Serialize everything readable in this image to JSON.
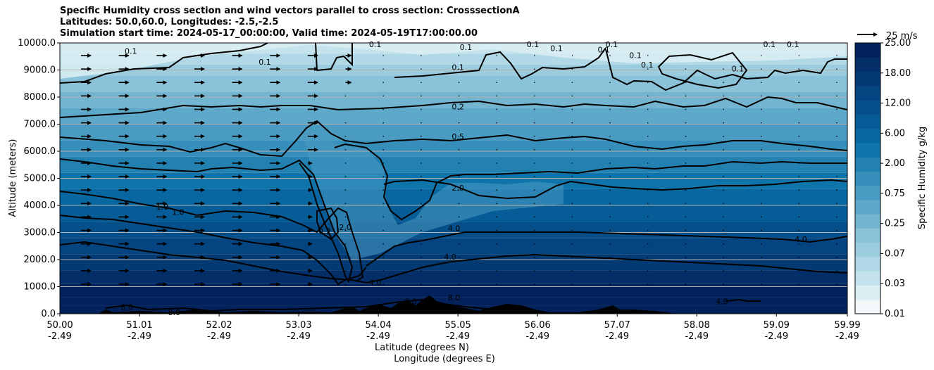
{
  "chart_data": {
    "type": "heatmap",
    "title_lines": [
      "Specific Humidity cross section and wind vectors parallel to cross section: CrosssectionA",
      "Latitudes: 50.0,60.0, Longitudes: -2.5,-2.5",
      "Simulation start time: 2024-05-17_00:00:00, Valid time: 2024-05-19T17:00:00.00"
    ],
    "xlabel_lines": [
      "Latitude (degrees N)",
      "Longitude (degrees E)"
    ],
    "ylabel": "Altitude (meters)",
    "x_ticks": [
      {
        "lat": "50.00",
        "lon": "-2.49"
      },
      {
        "lat": "51.01",
        "lon": "-2.49"
      },
      {
        "lat": "52.02",
        "lon": "-2.49"
      },
      {
        "lat": "53.03",
        "lon": "-2.49"
      },
      {
        "lat": "54.04",
        "lon": "-2.49"
      },
      {
        "lat": "55.05",
        "lon": "-2.49"
      },
      {
        "lat": "56.06",
        "lon": "-2.49"
      },
      {
        "lat": "57.07",
        "lon": "-2.49"
      },
      {
        "lat": "58.08",
        "lon": "-2.49"
      },
      {
        "lat": "59.09",
        "lon": "-2.49"
      },
      {
        "lat": "59.99",
        "lon": "-2.49"
      }
    ],
    "y_ticks": [
      "0.0",
      "1000.0",
      "2000.0",
      "3000.0",
      "4000.0",
      "5000.0",
      "6000.0",
      "7000.0",
      "8000.0",
      "9000.0",
      "10000.0"
    ],
    "ylim": [
      0,
      10000
    ],
    "xlim": [
      50.0,
      59.99
    ],
    "colorbar": {
      "label": "Specific Humidity g/kg",
      "ticks": [
        "0.01",
        "0.03",
        "0.07",
        "0.25",
        "0.75",
        "2.00",
        "6.00",
        "12.00",
        "18.00",
        "25.00"
      ],
      "levels": 19
    },
    "quiver_key": "25 m/s",
    "contour_labels": [
      {
        "text": "0.1",
        "lat": 50.9,
        "alt": 9700
      },
      {
        "text": "0.1",
        "lat": 52.6,
        "alt": 9300
      },
      {
        "text": "0.1",
        "lat": 54.0,
        "alt": 9950
      },
      {
        "text": "0.1",
        "lat": 55.15,
        "alt": 9850
      },
      {
        "text": "0.1",
        "lat": 55.05,
        "alt": 9100
      },
      {
        "text": "0.1",
        "lat": 56.0,
        "alt": 9950
      },
      {
        "text": "0.1",
        "lat": 56.3,
        "alt": 9800
      },
      {
        "text": "0.1",
        "lat": 56.9,
        "alt": 9750
      },
      {
        "text": "0.1",
        "lat": 57.0,
        "alt": 9950
      },
      {
        "text": "0.1",
        "lat": 57.3,
        "alt": 9550
      },
      {
        "text": "0.1",
        "lat": 57.45,
        "alt": 9200
      },
      {
        "text": "0.1",
        "lat": 59.0,
        "alt": 9950
      },
      {
        "text": "0.1",
        "lat": 59.3,
        "alt": 9950
      },
      {
        "text": "0.1",
        "lat": 58.6,
        "alt": 9050
      },
      {
        "text": "0.2",
        "lat": 55.05,
        "alt": 7650
      },
      {
        "text": "0.5",
        "lat": 55.05,
        "alt": 6550
      },
      {
        "text": "2.0",
        "lat": 55.05,
        "alt": 4650
      },
      {
        "text": "4.0",
        "lat": 55.0,
        "alt": 3150
      },
      {
        "text": "4.0",
        "lat": 54.95,
        "alt": 2100
      },
      {
        "text": "4.0",
        "lat": 54.0,
        "alt": 1150
      },
      {
        "text": "4.0",
        "lat": 59.4,
        "alt": 2750
      },
      {
        "text": "4.0",
        "lat": 58.4,
        "alt": 450
      },
      {
        "text": "1.0",
        "lat": 51.3,
        "alt": 3950
      },
      {
        "text": "1.0",
        "lat": 51.5,
        "alt": 3750
      },
      {
        "text": "0.2",
        "lat": 53.36,
        "alt": 3050
      },
      {
        "text": "2.0",
        "lat": 53.62,
        "alt": 3200
      },
      {
        "text": "8.0",
        "lat": 54.45,
        "alt": 450
      },
      {
        "text": "8.0",
        "lat": 55.0,
        "alt": 600
      },
      {
        "text": "8.0",
        "lat": 50.85,
        "alt": 250
      },
      {
        "text": "8.0",
        "lat": 51.45,
        "alt": 50
      }
    ]
  }
}
